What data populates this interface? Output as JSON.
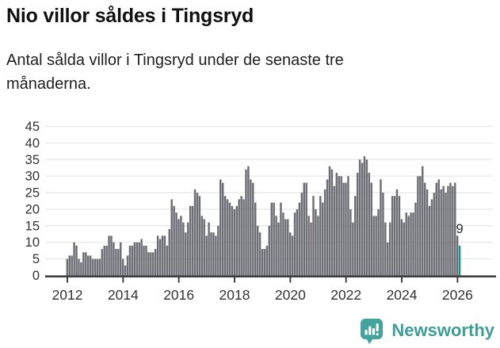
{
  "header": {
    "title": "Nio villor såldes i Tingsryd",
    "subtitle": "Antal sålda villor i Tingsryd under de senaste tre månaderna."
  },
  "chart_data": {
    "type": "bar",
    "title": "Nio villor såldes i Tingsryd",
    "subtitle": "Antal sålda villor i Tingsryd under de senaste tre månaderna.",
    "xlabel": "",
    "ylabel": "",
    "frequency": "monthly",
    "x_start": "2012-01",
    "x_end": "2026-02",
    "ylim": [
      0,
      45
    ],
    "yticks": [
      0,
      5,
      10,
      15,
      20,
      25,
      30,
      35,
      40,
      45
    ],
    "xticks": [
      2012,
      2014,
      2016,
      2018,
      2020,
      2022,
      2024,
      2026
    ],
    "grid": "horizontal",
    "legend": "none",
    "series": [
      {
        "name": "Antal sålda villor, rullande tre månader",
        "values": [
          5,
          6,
          6,
          10,
          9,
          5,
          4,
          7,
          7,
          6,
          6,
          5,
          5,
          5,
          5,
          8,
          9,
          9,
          12,
          12,
          10,
          8,
          8,
          10,
          5,
          3,
          6,
          9,
          9,
          10,
          10,
          10,
          11,
          9,
          9,
          7,
          7,
          7,
          8,
          12,
          11,
          12,
          12,
          9,
          14,
          23,
          21,
          19,
          17,
          18,
          16,
          13,
          16,
          21,
          21,
          26,
          25,
          24,
          18,
          17,
          12,
          16,
          13,
          13,
          12,
          15,
          29,
          28,
          24,
          23,
          22,
          21,
          20,
          21,
          23,
          24,
          23,
          32,
          33,
          29,
          28,
          22,
          15,
          13,
          8,
          8,
          9,
          15,
          22,
          22,
          18,
          16,
          22,
          19,
          17,
          17,
          13,
          12,
          19,
          20,
          22,
          25,
          28,
          28,
          18,
          16,
          24,
          20,
          18,
          24,
          22,
          26,
          29,
          33,
          32,
          27,
          31,
          30,
          30,
          28,
          28,
          30,
          20,
          16,
          24,
          31,
          35,
          34,
          36,
          35,
          31,
          28,
          18,
          18,
          20,
          29,
          25,
          16,
          10,
          16,
          24,
          24,
          26,
          24,
          17,
          16,
          19,
          18,
          19,
          19,
          22,
          30,
          30,
          33,
          28,
          26,
          21,
          23,
          25,
          28,
          29,
          26,
          27,
          25,
          27,
          28,
          27,
          28,
          12,
          9
        ]
      }
    ],
    "highlight": {
      "index": 169,
      "value": 9,
      "label": "9"
    },
    "colors": {
      "bar": "#6d6d75",
      "highlight_bar": "#12978f",
      "axis": "#3f3f3f",
      "grid": "#e8e8e8",
      "tick_label": "#333333",
      "value_label": "#2b2b2b"
    }
  },
  "footer": {
    "brand": "Newsworthy",
    "brand_color": "#3f9e97",
    "logo_icon": "bar-chart-speech-bubble-icon"
  }
}
